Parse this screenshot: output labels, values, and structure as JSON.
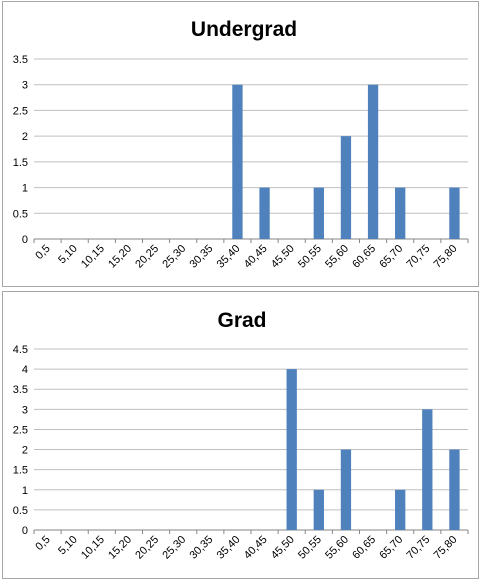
{
  "chart_data": [
    {
      "type": "bar",
      "title": "Undergrad",
      "categories": [
        "0,5",
        "5,10",
        "10,15",
        "15,20",
        "20,25",
        "25,30",
        "30,35",
        "35,40",
        "40,45",
        "45,50",
        "50,55",
        "55,60",
        "60,65",
        "65,70",
        "70,75",
        "75,80"
      ],
      "values": [
        0,
        0,
        0,
        0,
        0,
        0,
        0,
        3,
        1,
        0,
        1,
        2,
        3,
        1,
        0,
        1
      ],
      "ylim": [
        0,
        3.5
      ],
      "yticks": [
        "0",
        "0.5",
        "1",
        "1.5",
        "2",
        "2.5",
        "3",
        "3.5"
      ],
      "grid": true,
      "color": "#4f81bd"
    },
    {
      "type": "bar",
      "title": "Grad",
      "categories": [
        "0,5",
        "5,10",
        "10,15",
        "15,20",
        "20,25",
        "25,30",
        "30,35",
        "35,40",
        "40,45",
        "45,50",
        "50,55",
        "55,60",
        "60,65",
        "65,70",
        "70,75",
        "75,80"
      ],
      "values": [
        0,
        0,
        0,
        0,
        0,
        0,
        0,
        0,
        0,
        4,
        1,
        2,
        0,
        1,
        3,
        2
      ],
      "ylim": [
        0,
        4.5
      ],
      "yticks": [
        "0",
        "0.5",
        "1",
        "1.5",
        "2",
        "2.5",
        "3",
        "3.5",
        "4",
        "4.5"
      ],
      "grid": true,
      "color": "#4f81bd"
    }
  ]
}
